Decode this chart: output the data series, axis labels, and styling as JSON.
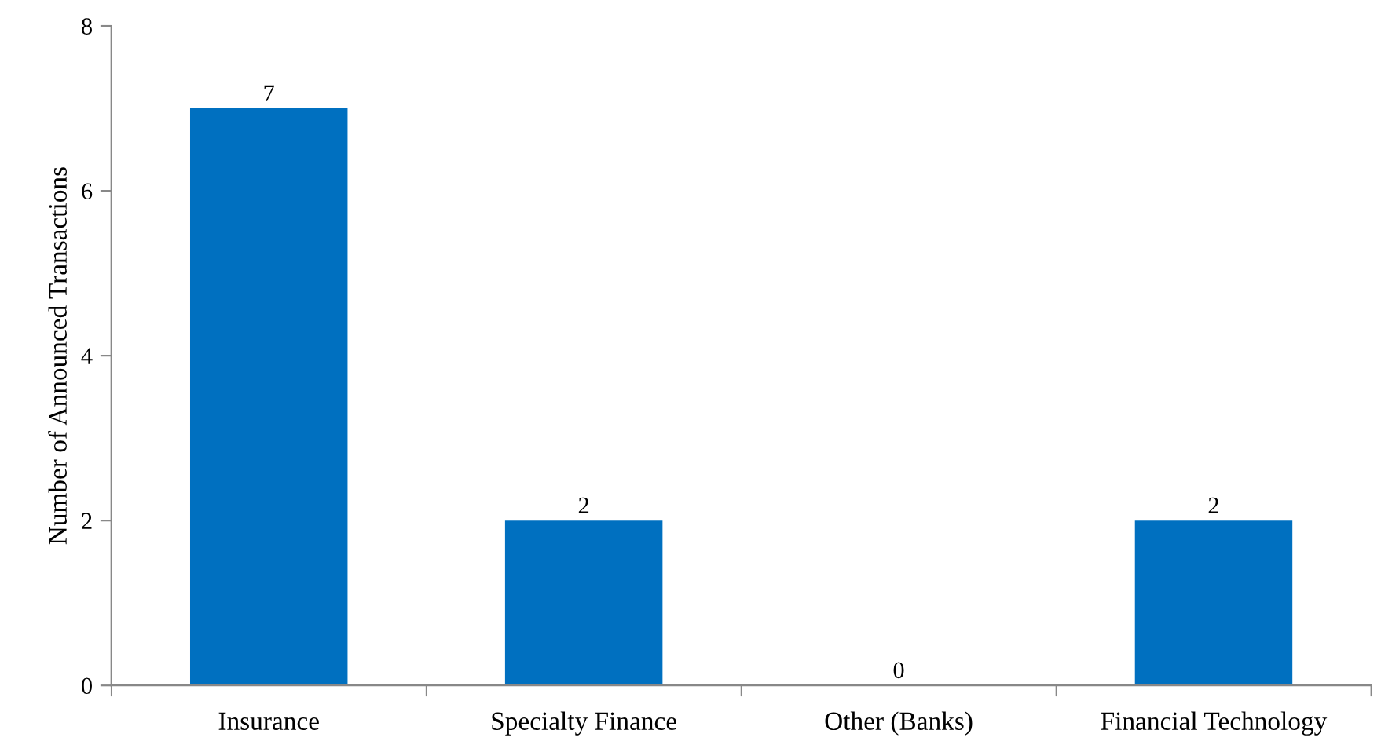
{
  "chart_data": {
    "type": "bar",
    "categories": [
      "Insurance",
      "Specialty Finance",
      "Other (Banks)",
      "Financial Technology"
    ],
    "values": [
      7,
      2,
      0,
      2
    ],
    "color": "#0070c0",
    "ylabel": "Number of Announced Transactions",
    "ylim": [
      0,
      8
    ],
    "yticks": [
      0,
      2,
      4,
      6,
      8
    ],
    "data_labels": true,
    "grid": false
  }
}
